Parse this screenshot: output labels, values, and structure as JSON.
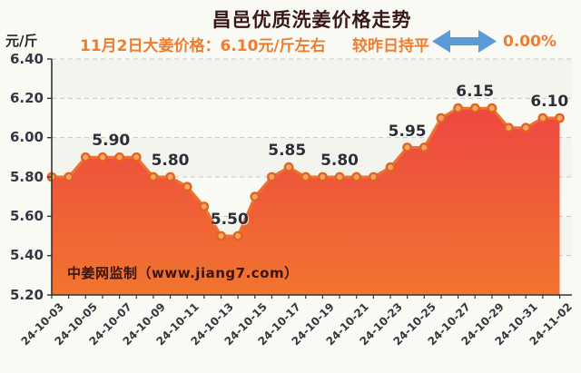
{
  "header": {
    "title": "昌邑优质洗姜价格走势",
    "subtitle": "11月2日大姜价格：6.10元/斤左右",
    "comparison_label": "较昨日持平",
    "comparison_value": "0.00%",
    "arrow_icon": "double-horizontal-arrow",
    "colors": {
      "title": "#3A1717",
      "accent_orange": "#ED7D31",
      "arrow_blue": "#5B9BD5"
    }
  },
  "watermark": "中姜网监制（www.jiang7.com）",
  "chart_data": {
    "type": "area",
    "title": "昌邑优质洗姜价格走势",
    "xlabel": "",
    "ylabel": "元/斤",
    "ylim": [
      5.2,
      6.4
    ],
    "grid": "dashed-horizontal",
    "legend_position": "none",
    "x": [
      "24-10-03",
      "24-10-04",
      "24-10-05",
      "24-10-06",
      "24-10-07",
      "24-10-08",
      "24-10-09",
      "24-10-10",
      "24-10-11",
      "24-10-12",
      "24-10-13",
      "24-10-14",
      "24-10-15",
      "24-10-16",
      "24-10-17",
      "24-10-18",
      "24-10-19",
      "24-10-20",
      "24-10-21",
      "24-10-22",
      "24-10-23",
      "24-10-24",
      "24-10-25",
      "24-10-26",
      "24-10-27",
      "24-10-28",
      "24-10-29",
      "24-10-30",
      "24-10-31",
      "24-11-01",
      "24-11-02"
    ],
    "values": [
      5.8,
      5.8,
      5.9,
      5.9,
      5.9,
      5.9,
      5.8,
      5.8,
      5.75,
      5.65,
      5.5,
      5.5,
      5.7,
      5.8,
      5.85,
      5.8,
      5.8,
      5.8,
      5.8,
      5.8,
      5.85,
      5.95,
      5.95,
      6.1,
      6.15,
      6.15,
      6.15,
      6.05,
      6.05,
      6.1,
      6.1
    ],
    "x_tick_labels": [
      "24-10-03",
      "24-10-05",
      "24-10-07",
      "24-10-09",
      "24-10-11",
      "24-10-13",
      "24-10-15",
      "24-10-17",
      "24-10-19",
      "24-10-21",
      "24-10-23",
      "24-10-25",
      "24-10-27",
      "24-10-29",
      "24-10-31",
      "24-11-02"
    ],
    "y_ticks": [
      "6.40",
      "6.20",
      "6.00",
      "5.80",
      "5.60",
      "5.40",
      "5.20"
    ],
    "annotations": [
      {
        "at": 3.5,
        "value": 5.9,
        "label": "5.90"
      },
      {
        "at": 7.0,
        "value": 5.8,
        "label": "5.80"
      },
      {
        "at": 10.5,
        "value": 5.5,
        "label": "5.50"
      },
      {
        "at": 13.9,
        "value": 5.85,
        "label": "5.85"
      },
      {
        "at": 17.0,
        "value": 5.8,
        "label": "5.80"
      },
      {
        "at": 21.0,
        "value": 5.95,
        "label": "5.95"
      },
      {
        "at": 25.0,
        "value": 6.15,
        "label": "6.15"
      },
      {
        "at": 29.4,
        "value": 6.1,
        "label": "6.10"
      }
    ],
    "line_color": "#EC7331",
    "marker_fill": "#F8A469",
    "marker_stroke": "#E0661E",
    "area_gradient_top": "#EC3B47",
    "area_gradient_bottom": "#F1752F",
    "grid_color": "#C6C6C6",
    "axis_color": "#333333"
  }
}
